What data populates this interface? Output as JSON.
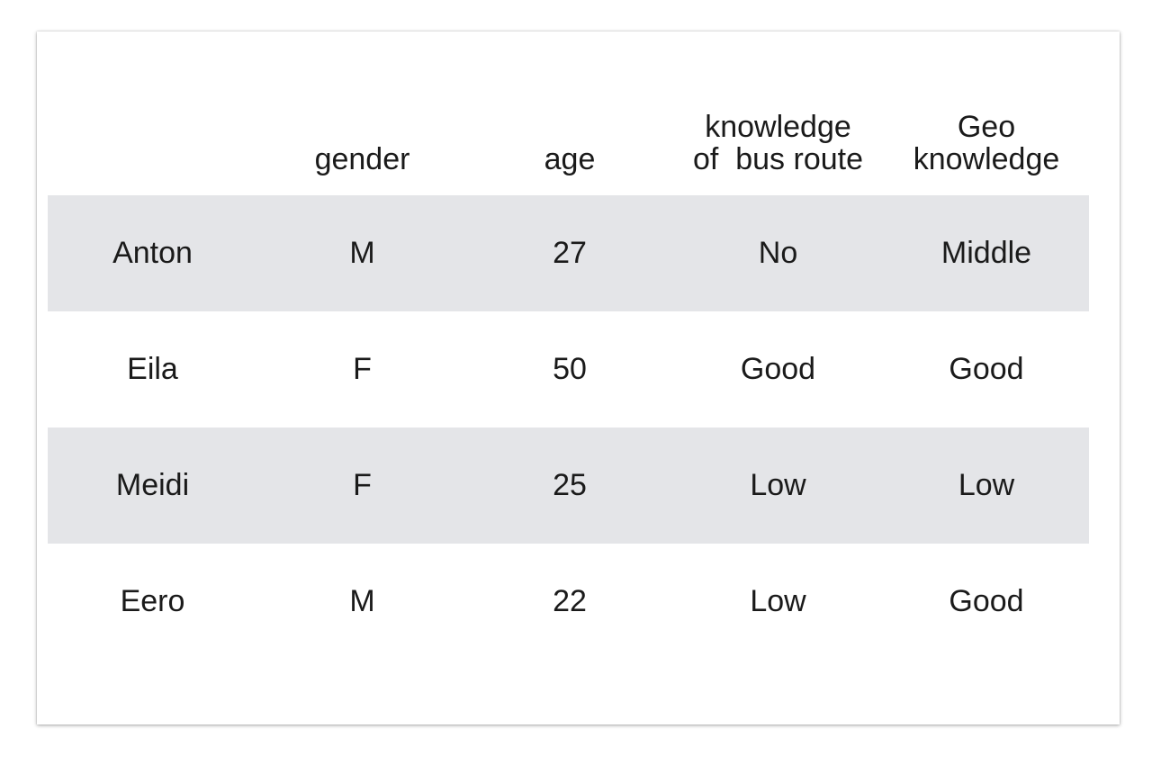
{
  "table": {
    "headers": {
      "name": "",
      "gender": "gender",
      "age": "age",
      "bus_route_line1": "knowledge",
      "bus_route_line2": "of  bus route",
      "geo_line1": "Geo",
      "geo_line2": "knowledge"
    },
    "rows": [
      {
        "name": "Anton",
        "gender": "M",
        "age": "27",
        "bus_route": "No",
        "geo": "Middle"
      },
      {
        "name": "Eila",
        "gender": "F",
        "age": "50",
        "bus_route": "Good",
        "geo": "Good"
      },
      {
        "name": "Meidi",
        "gender": "F",
        "age": "25",
        "bus_route": "Low",
        "geo": "Low"
      },
      {
        "name": "Eero",
        "gender": "M",
        "age": "22",
        "bus_route": "Low",
        "geo": "Good"
      }
    ]
  },
  "colors": {
    "shaded_row": "#e4e5e8",
    "text": "#1a1a1a",
    "background": "#ffffff"
  }
}
